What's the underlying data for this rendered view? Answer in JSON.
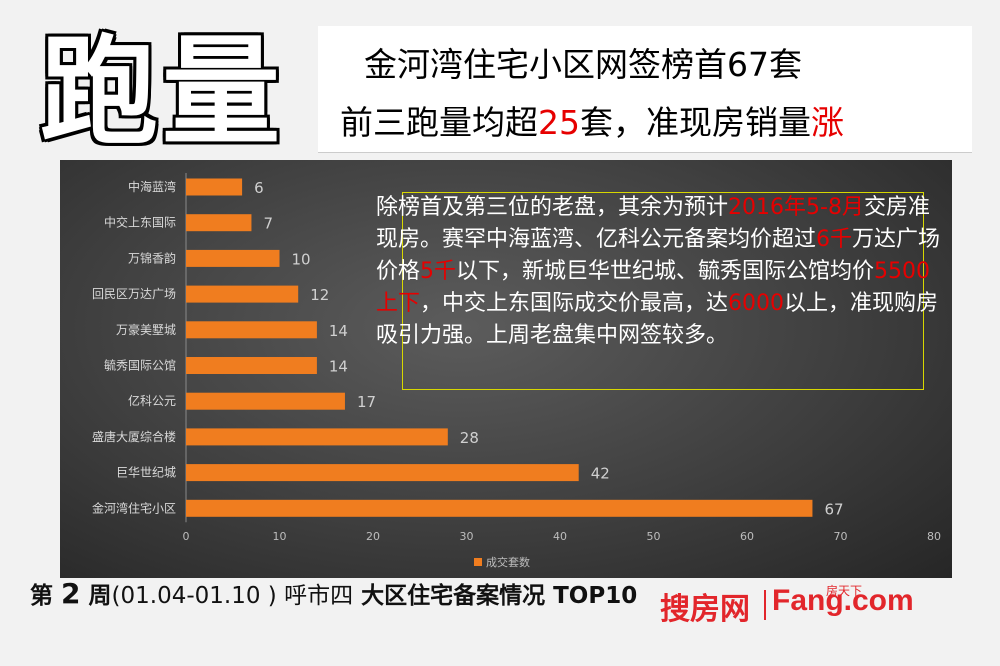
{
  "big_title": "跑量",
  "headline": {
    "line1": "金河湾住宅小区网签榜首67套",
    "line2_a": "前三跑量均超",
    "line2_b": "25",
    "line2_c": "套，准现房销量",
    "line2_d": "涨"
  },
  "note": {
    "p1": "除榜首及第三位的老盘，其余为预计",
    "p2": "2016年5-8月",
    "p3": "交房准现房。赛罕中海蓝湾、亿科公元备案均价超过",
    "p4": "6千",
    "p5": "万达广场价格",
    "p6": "5千",
    "p7": "以下，新城巨华世纪城、毓秀国际公馆均价",
    "p8": "5500上下",
    "p9": "，中交上东国际成交价最高，达",
    "p10": "6000",
    "p11": "以上，准现购房吸引力强。上周老盘集中网签较多。"
  },
  "caption": {
    "prefix": "第",
    "num": "2",
    "mid": "周",
    "range": "(01.04-01.10 )",
    "city": " 呼市四",
    "rest": "大区住宅备案情况 TOP10"
  },
  "logo": {
    "cn": "搜房网",
    "en": "Fang.com",
    "small": "房天下"
  },
  "colors": {
    "bar": "#f07d1f",
    "accent_red": "#e60000"
  },
  "chart_data": {
    "type": "bar",
    "orientation": "horizontal",
    "categories": [
      "中海蓝湾",
      "中交上东国际",
      "万锦香韵",
      "回民区万达广场",
      "万豪美墅城",
      "毓秀国际公馆",
      "亿科公元",
      "盛唐大厦综合楼",
      "巨华世纪城",
      "金河湾住宅小区"
    ],
    "series": [
      {
        "name": "成交套数",
        "values": [
          6,
          7,
          10,
          12,
          14,
          14,
          17,
          28,
          42,
          67
        ]
      }
    ],
    "xlim": [
      0,
      80
    ],
    "xticks": [
      0,
      10,
      20,
      30,
      40,
      50,
      60,
      70,
      80
    ],
    "legend": "bottom"
  }
}
